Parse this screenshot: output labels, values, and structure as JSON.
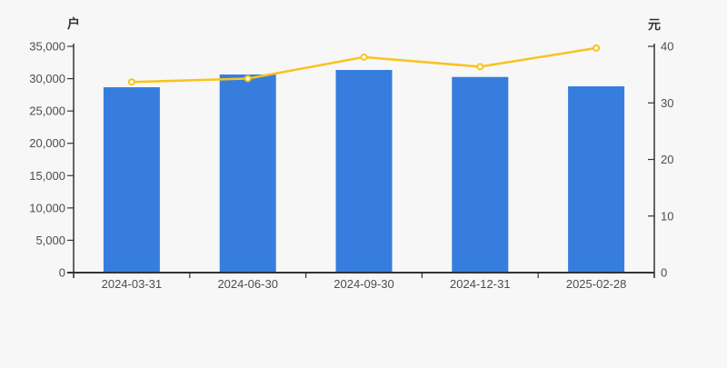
{
  "page": {
    "background": "#f7f7f7"
  },
  "chart_data": {
    "type": "bar",
    "categories": [
      "2024-03-31",
      "2024-06-30",
      "2024-09-30",
      "2024-12-31",
      "2025-02-28"
    ],
    "series": [
      {
        "id": "holder-count-bars",
        "type": "bar",
        "yaxis": "left",
        "color": "#377dde",
        "values": [
          28674,
          30642,
          31345,
          30262,
          28815
        ]
      },
      {
        "id": "price-line",
        "type": "line",
        "yaxis": "right",
        "color": "#f8c31c",
        "marker": "empty-circle",
        "marker_fill": "#ffffff",
        "values": [
          33.7,
          34.3,
          38.1,
          36.4,
          39.7
        ]
      }
    ],
    "left_axis": {
      "title": "户",
      "min": 0,
      "max": 35000,
      "tick_step": 5000,
      "tick_labels": [
        "0",
        "5,000",
        "10,000",
        "15,000",
        "20,000",
        "25,000",
        "30,000",
        "35,000"
      ]
    },
    "right_axis": {
      "title": "元",
      "min": 0,
      "max": 40,
      "tick_step": 10,
      "tick_labels": [
        "0",
        "10",
        "20",
        "30",
        "40"
      ]
    },
    "x_axis": {
      "labels": [
        "2024-03-31",
        "2024-06-30",
        "2024-09-30",
        "2024-12-31",
        "2025-02-28"
      ]
    },
    "grid": false,
    "legend": false,
    "axis_color": "#333333",
    "tick_label_color": "#4d4d4d"
  }
}
